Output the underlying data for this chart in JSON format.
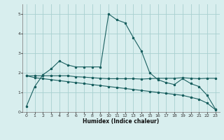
{
  "xlabel": "Humidex (Indice chaleur)",
  "bg_color": "#d8eeee",
  "grid_color": "#a8d0d0",
  "line_color": "#1a6060",
  "xlim": [
    -0.5,
    23.5
  ],
  "ylim": [
    0,
    5.5
  ],
  "xticks": [
    0,
    1,
    2,
    3,
    4,
    5,
    6,
    7,
    8,
    9,
    10,
    11,
    12,
    13,
    14,
    15,
    16,
    17,
    18,
    19,
    20,
    21,
    22,
    23
  ],
  "yticks": [
    0,
    1,
    2,
    3,
    4,
    5
  ],
  "series1_x": [
    0,
    1,
    2,
    3,
    4,
    5,
    6,
    7,
    8,
    9,
    10,
    11,
    12,
    13,
    14,
    15,
    16,
    17,
    18,
    19,
    20,
    21,
    22,
    23
  ],
  "series1_y": [
    0.3,
    1.3,
    1.9,
    2.2,
    2.6,
    2.4,
    2.3,
    2.3,
    2.3,
    2.3,
    5.0,
    4.7,
    4.55,
    3.8,
    3.1,
    2.0,
    1.65,
    1.5,
    1.4,
    1.7,
    1.45,
    1.3,
    0.85,
    0.15
  ],
  "series2_x": [
    0,
    1,
    2,
    3,
    4,
    5,
    6,
    7,
    8,
    9,
    10,
    11,
    12,
    13,
    14,
    15,
    16,
    17,
    18,
    19,
    20,
    21,
    22,
    23
  ],
  "series2_y": [
    1.85,
    1.85,
    1.85,
    1.85,
    1.85,
    1.85,
    1.8,
    1.78,
    1.75,
    1.72,
    1.7,
    1.7,
    1.7,
    1.7,
    1.68,
    1.7,
    1.72,
    1.72,
    1.72,
    1.75,
    1.72,
    1.7,
    1.72,
    1.72
  ],
  "series3_x": [
    0,
    1,
    2,
    3,
    4,
    5,
    6,
    7,
    8,
    9,
    10,
    11,
    12,
    13,
    14,
    15,
    16,
    17,
    18,
    19,
    20,
    21,
    22,
    23
  ],
  "series3_y": [
    1.85,
    1.75,
    1.7,
    1.65,
    1.6,
    1.55,
    1.5,
    1.45,
    1.4,
    1.35,
    1.3,
    1.25,
    1.2,
    1.15,
    1.1,
    1.05,
    1.0,
    0.95,
    0.9,
    0.85,
    0.75,
    0.65,
    0.45,
    0.12
  ],
  "xlabel_fontsize": 5.5,
  "tick_fontsize": 4.5,
  "linewidth": 0.8,
  "markersize": 2.2
}
